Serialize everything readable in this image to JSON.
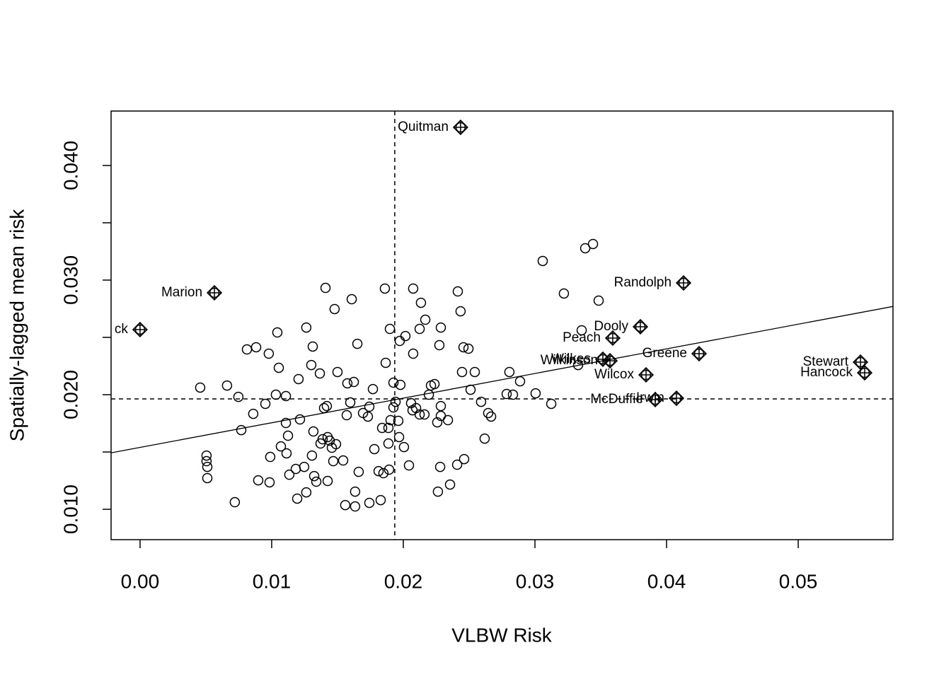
{
  "chart_data": {
    "type": "scatter",
    "xlabel": "VLBW Risk",
    "ylabel": "Spatially-lagged mean risk",
    "xlim": [
      -0.0022,
      0.0572
    ],
    "ylim": [
      0.00735,
      0.04475
    ],
    "xticks": [
      {
        "value": 0,
        "label": "0.00"
      },
      {
        "value": 0.01,
        "label": "0.01"
      },
      {
        "value": 0.02,
        "label": "0.02"
      },
      {
        "value": 0.03,
        "label": "0.03"
      },
      {
        "value": 0.04,
        "label": "0.04"
      },
      {
        "value": 0.05,
        "label": "0.05"
      }
    ],
    "yticks": [
      {
        "value": 0.01,
        "label": "0.010"
      },
      {
        "value": 0.015,
        "label": null
      },
      {
        "value": 0.02,
        "label": "0.020"
      },
      {
        "value": 0.025,
        "label": null
      },
      {
        "value": 0.03,
        "label": "0.030"
      },
      {
        "value": 0.035,
        "label": null
      },
      {
        "value": 0.04,
        "label": "0.040"
      }
    ],
    "mean_x": 0.01935,
    "mean_y": 0.01963,
    "regression": {
      "intercept": 0.0154,
      "slope": 0.215
    },
    "points": {
      "x": [
        0.00457,
        0.00661,
        0.00747,
        0.00505,
        0.00505,
        0.00511,
        0.00511,
        0.0072,
        0.00769,
        0.00812,
        0.0086,
        0.00882,
        0.00898,
        0.00952,
        0.00978,
        0.00984,
        0.00989,
        0.01032,
        0.01043,
        0.01054,
        0.0107,
        0.01108,
        0.01108,
        0.01113,
        0.01124,
        0.01134,
        0.01183,
        0.01194,
        0.01204,
        0.01215,
        0.01247,
        0.01263,
        0.01263,
        0.01301,
        0.01306,
        0.01312,
        0.01317,
        0.01323,
        0.01339,
        0.01366,
        0.01371,
        0.01387,
        0.01398,
        0.01409,
        0.01419,
        0.01425,
        0.01425,
        0.01441,
        0.01457,
        0.01468,
        0.01478,
        0.01489,
        0.015,
        0.01543,
        0.01559,
        0.0157,
        0.01575,
        0.01597,
        0.01608,
        0.01624,
        0.01634,
        0.01634,
        0.01651,
        0.01661,
        0.01694,
        0.01731,
        0.01742,
        0.01742,
        0.01769,
        0.0178,
        0.01812,
        0.01828,
        0.01839,
        0.01849,
        0.0186,
        0.01866,
        0.01887,
        0.01887,
        0.01892,
        0.01898,
        0.01903,
        0.01925,
        0.01925,
        0.01941,
        0.01962,
        0.01968,
        0.01973,
        0.01978,
        0.02005,
        0.02016,
        0.02043,
        0.02059,
        0.0207,
        0.02075,
        0.02075,
        0.02097,
        0.02124,
        0.02124,
        0.02134,
        0.02161,
        0.02167,
        0.02194,
        0.0221,
        0.02237,
        0.02258,
        0.02263,
        0.02274,
        0.0228,
        0.02285,
        0.02285,
        0.02285,
        0.02339,
        0.02355,
        0.02409,
        0.02414,
        0.02435,
        0.02446,
        0.02457,
        0.02462,
        0.02495,
        0.02511,
        0.02543,
        0.02591,
        0.02618,
        0.02645,
        0.02667,
        0.02785,
        0.02806,
        0.02833,
        0.02887,
        0.03005,
        0.03059,
        0.03124,
        0.0322,
        0.03355,
        0.03382,
        0.03441,
        0.03484,
        0.03328
      ],
      "y": [
        0.02062,
        0.0208,
        0.01981,
        0.01469,
        0.0142,
        0.0137,
        0.01272,
        0.01062,
        0.01691,
        0.02395,
        0.01833,
        0.02414,
        0.01253,
        0.0192,
        0.02358,
        0.01235,
        0.01457,
        0.02,
        0.02543,
        0.02235,
        0.01549,
        0.01988,
        0.01753,
        0.01488,
        0.01642,
        0.01302,
        0.01352,
        0.01093,
        0.02136,
        0.01784,
        0.0137,
        0.02586,
        0.01148,
        0.02259,
        0.01469,
        0.0242,
        0.01679,
        0.0129,
        0.01241,
        0.02185,
        0.01574,
        0.01611,
        0.01883,
        0.02932,
        0.01901,
        0.01247,
        0.0163,
        0.01599,
        0.01537,
        0.0142,
        0.02747,
        0.01568,
        0.02198,
        0.01426,
        0.01037,
        0.01821,
        0.02099,
        0.01932,
        0.02833,
        0.02111,
        0.01154,
        0.01025,
        0.02444,
        0.01327,
        0.0184,
        0.01809,
        0.01895,
        0.01056,
        0.02049,
        0.01525,
        0.01333,
        0.0108,
        0.0171,
        0.01315,
        0.02926,
        0.02278,
        0.0171,
        0.01574,
        0.01346,
        0.02574,
        0.01778,
        0.02105,
        0.01889,
        0.01938,
        0.01772,
        0.0163,
        0.02469,
        0.02086,
        0.01543,
        0.02512,
        0.01383,
        0.01926,
        0.01864,
        0.02358,
        0.02926,
        0.01883,
        0.02574,
        0.01827,
        0.02802,
        0.01827,
        0.02654,
        0.02,
        0.0208,
        0.02093,
        0.01759,
        0.01154,
        0.02432,
        0.0137,
        0.01901,
        0.01815,
        0.02586,
        0.01778,
        0.01216,
        0.01389,
        0.02901,
        0.02728,
        0.02198,
        0.02414,
        0.01438,
        0.02401,
        0.02043,
        0.02198,
        0.01938,
        0.01617,
        0.0184,
        0.01809,
        0.02006,
        0.02198,
        0.02,
        0.02117,
        0.02012,
        0.03167,
        0.0192,
        0.02883,
        0.02562,
        0.03278,
        0.03315,
        0.02821,
        0.02259
      ]
    },
    "influential": {
      "labels": [
        "Quitman",
        "Randolph",
        "Marion",
        "ck",
        "Dooly",
        "Peach",
        "Greene",
        "Wilkes",
        "Wilkinson",
        "Wilcox",
        "McDuffie",
        "Irwin",
        "Stewart",
        "Hancock"
      ],
      "x": [
        0.02435,
        0.04129,
        0.00565,
        0.0,
        0.03801,
        0.03591,
        0.04247,
        0.03516,
        0.0357,
        0.03844,
        0.03914,
        0.04075,
        0.05473,
        0.05505
      ],
      "y": [
        0.04333,
        0.02975,
        0.02889,
        0.02568,
        0.02593,
        0.02494,
        0.02358,
        0.02309,
        0.02296,
        0.02173,
        0.01957,
        0.01969,
        0.02284,
        0.02191
      ]
    }
  }
}
